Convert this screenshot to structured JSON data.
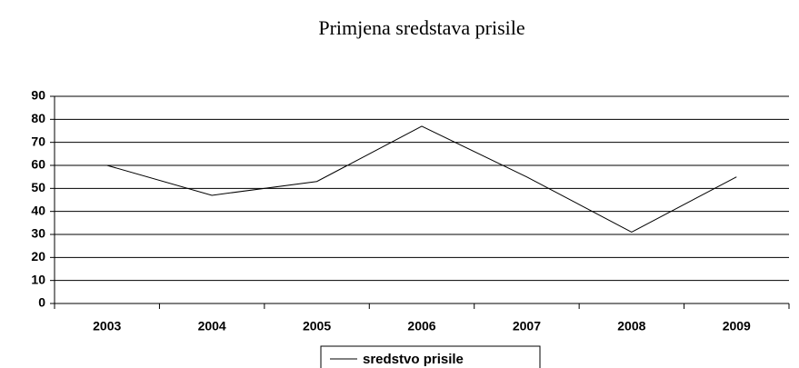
{
  "chart_data": {
    "type": "line",
    "title": "Primjena sredstava prisile",
    "categories": [
      "2003",
      "2004",
      "2005",
      "2006",
      "2007",
      "2008",
      "2009"
    ],
    "series": [
      {
        "name": "sredstvo prisile",
        "color": "#000000",
        "values": [
          60,
          47,
          53,
          77,
          55,
          31,
          55
        ]
      }
    ],
    "ylim": [
      0,
      90
    ],
    "yticks": [
      0,
      10,
      20,
      30,
      40,
      50,
      60,
      70,
      80,
      90
    ],
    "grid": true,
    "legend": "bottom"
  }
}
